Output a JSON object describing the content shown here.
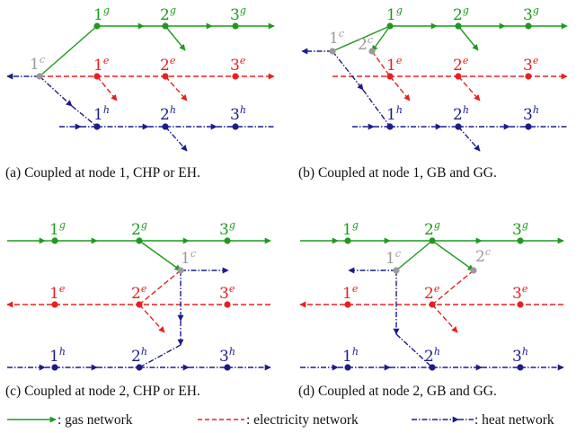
{
  "colors": {
    "gas": "#1e9a1e",
    "electricity": "#e82020",
    "heat": "#1c1c8c",
    "coupling": "#9a9a9a",
    "text": "#111111"
  },
  "panels": [
    {
      "id": "a",
      "caption": "(a) Coupled at node 1, CHP or EH.",
      "nodes": [
        {
          "label": "1",
          "sup": "g",
          "network": "gas"
        },
        {
          "label": "2",
          "sup": "g",
          "network": "gas"
        },
        {
          "label": "3",
          "sup": "g",
          "network": "gas"
        },
        {
          "label": "1",
          "sup": "e",
          "network": "electricity"
        },
        {
          "label": "2",
          "sup": "e",
          "network": "electricity"
        },
        {
          "label": "3",
          "sup": "e",
          "network": "electricity"
        },
        {
          "label": "1",
          "sup": "h",
          "network": "heat"
        },
        {
          "label": "2",
          "sup": "h",
          "network": "heat"
        },
        {
          "label": "3",
          "sup": "h",
          "network": "heat"
        },
        {
          "label": "1",
          "sup": "c",
          "network": "coupling"
        }
      ]
    },
    {
      "id": "b",
      "caption": "(b) Coupled at node 1, GB and GG.",
      "nodes": [
        {
          "label": "1",
          "sup": "g",
          "network": "gas"
        },
        {
          "label": "2",
          "sup": "g",
          "network": "gas"
        },
        {
          "label": "3",
          "sup": "g",
          "network": "gas"
        },
        {
          "label": "1",
          "sup": "e",
          "network": "electricity"
        },
        {
          "label": "2",
          "sup": "e",
          "network": "electricity"
        },
        {
          "label": "3",
          "sup": "e",
          "network": "electricity"
        },
        {
          "label": "1",
          "sup": "h",
          "network": "heat"
        },
        {
          "label": "2",
          "sup": "h",
          "network": "heat"
        },
        {
          "label": "3",
          "sup": "h",
          "network": "heat"
        },
        {
          "label": "1",
          "sup": "c",
          "network": "coupling"
        },
        {
          "label": "2",
          "sup": "c",
          "network": "coupling"
        }
      ]
    },
    {
      "id": "c",
      "caption": "(c) Coupled at node 2, CHP or EH.",
      "nodes": [
        {
          "label": "1",
          "sup": "g",
          "network": "gas"
        },
        {
          "label": "2",
          "sup": "g",
          "network": "gas"
        },
        {
          "label": "3",
          "sup": "g",
          "network": "gas"
        },
        {
          "label": "1",
          "sup": "e",
          "network": "electricity"
        },
        {
          "label": "2",
          "sup": "e",
          "network": "electricity"
        },
        {
          "label": "3",
          "sup": "e",
          "network": "electricity"
        },
        {
          "label": "1",
          "sup": "h",
          "network": "heat"
        },
        {
          "label": "2",
          "sup": "h",
          "network": "heat"
        },
        {
          "label": "3",
          "sup": "h",
          "network": "heat"
        },
        {
          "label": "1",
          "sup": "c",
          "network": "coupling"
        }
      ]
    },
    {
      "id": "d",
      "caption": "(d) Coupled at node 2, GB and GG.",
      "nodes": [
        {
          "label": "1",
          "sup": "g",
          "network": "gas"
        },
        {
          "label": "2",
          "sup": "g",
          "network": "gas"
        },
        {
          "label": "3",
          "sup": "g",
          "network": "gas"
        },
        {
          "label": "1",
          "sup": "e",
          "network": "electricity"
        },
        {
          "label": "2",
          "sup": "e",
          "network": "electricity"
        },
        {
          "label": "3",
          "sup": "e",
          "network": "electricity"
        },
        {
          "label": "1",
          "sup": "h",
          "network": "heat"
        },
        {
          "label": "2",
          "sup": "h",
          "network": "heat"
        },
        {
          "label": "3",
          "sup": "h",
          "network": "heat"
        },
        {
          "label": "1",
          "sup": "c",
          "network": "coupling"
        },
        {
          "label": "2",
          "sup": "c",
          "network": "coupling"
        }
      ]
    }
  ],
  "legend": [
    {
      "network": "gas",
      "label": ": gas network"
    },
    {
      "network": "electricity",
      "label": ": electricity network"
    },
    {
      "network": "heat",
      "label": ": heat network"
    }
  ]
}
